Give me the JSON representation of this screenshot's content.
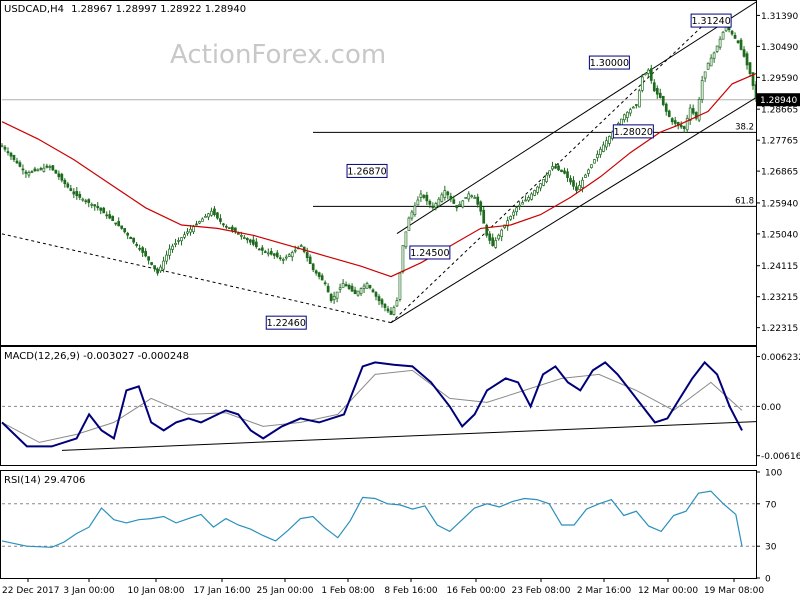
{
  "chart_data": [
    {
      "type": "candlestick",
      "header": {
        "symbol_tf": "USDCAD,H4",
        "ohlc": "1.28967 1.28997 1.28922 1.28940"
      },
      "watermark": "ActionForex.com",
      "y_axis_ticks": [
        "1.31390",
        "1.30490",
        "1.29590",
        "1.28665",
        "1.27765",
        "1.26865",
        "1.25940",
        "1.25040",
        "1.24115",
        "1.23215",
        "1.22315"
      ],
      "ylim": [
        1.2184,
        1.3178
      ],
      "last_price": "1.28940",
      "price_path": [
        [
          0,
          1.276
        ],
        [
          4,
          1.268
        ],
        [
          8,
          1.27
        ],
        [
          12,
          1.262
        ],
        [
          16,
          1.258
        ],
        [
          20,
          1.252
        ],
        [
          24,
          1.244
        ],
        [
          26,
          1.239
        ],
        [
          28,
          1.246
        ],
        [
          31,
          1.251
        ],
        [
          35,
          1.257
        ],
        [
          37,
          1.253
        ],
        [
          40,
          1.25
        ],
        [
          43,
          1.246
        ],
        [
          47,
          1.243
        ],
        [
          50,
          1.247
        ],
        [
          52,
          1.24
        ],
        [
          54,
          1.236
        ],
        [
          55,
          1.231
        ],
        [
          57,
          1.236
        ],
        [
          59,
          1.233
        ],
        [
          61,
          1.236
        ],
        [
          63,
          1.231
        ],
        [
          65,
          1.227
        ],
        [
          66,
          1.231
        ],
        [
          67,
          1.247
        ],
        [
          68,
          1.255
        ],
        [
          70,
          1.262
        ],
        [
          72,
          1.258
        ],
        [
          74,
          1.263
        ],
        [
          76,
          1.258
        ],
        [
          78,
          1.262
        ],
        [
          79,
          1.261
        ],
        [
          80,
          1.257
        ],
        [
          81,
          1.25
        ],
        [
          82,
          1.247
        ],
        [
          84,
          1.253
        ],
        [
          86,
          1.258
        ],
        [
          88,
          1.261
        ],
        [
          90,
          1.265
        ],
        [
          92,
          1.27
        ],
        [
          94,
          1.268
        ],
        [
          96,
          1.263
        ],
        [
          98,
          1.269
        ],
        [
          100,
          1.275
        ],
        [
          102,
          1.28
        ],
        [
          104,
          1.285
        ],
        [
          106,
          1.288
        ],
        [
          107,
          1.296
        ],
        [
          108,
          1.298
        ],
        [
          109,
          1.292
        ],
        [
          110,
          1.29
        ],
        [
          111,
          1.286
        ],
        [
          112,
          1.283
        ],
        [
          114,
          1.281
        ],
        [
          115,
          1.287
        ],
        [
          116,
          1.284
        ],
        [
          117,
          1.295
        ],
        [
          118,
          1.3
        ],
        [
          119,
          1.303
        ],
        [
          120,
          1.307
        ],
        [
          121,
          1.311
        ],
        [
          123,
          1.306
        ],
        [
          124,
          1.302
        ],
        [
          125,
          1.297
        ],
        [
          126,
          1.29
        ]
      ],
      "ma_path": [
        [
          0,
          1.283
        ],
        [
          6,
          1.278
        ],
        [
          12,
          1.272
        ],
        [
          18,
          1.265
        ],
        [
          24,
          1.258
        ],
        [
          30,
          1.253
        ],
        [
          36,
          1.252
        ],
        [
          42,
          1.25
        ],
        [
          48,
          1.247
        ],
        [
          54,
          1.244
        ],
        [
          60,
          1.241
        ],
        [
          65,
          1.238
        ],
        [
          70,
          1.242
        ],
        [
          75,
          1.247
        ],
        [
          80,
          1.252
        ],
        [
          85,
          1.253
        ],
        [
          90,
          1.256
        ],
        [
          95,
          1.261
        ],
        [
          100,
          1.267
        ],
        [
          105,
          1.274
        ],
        [
          110,
          1.28
        ],
        [
          113,
          1.282
        ],
        [
          118,
          1.286
        ],
        [
          122,
          1.294
        ],
        [
          126,
          1.297
        ]
      ],
      "labels": [
        {
          "text": "1.31240",
          "x": 118.5,
          "y": 1.3124
        },
        {
          "text": "1.30000",
          "x": 101.5,
          "y": 1.3002
        },
        {
          "text": "1.28020",
          "x": 105.5,
          "y": 1.2802
        },
        {
          "text": "1.26870",
          "x": 61,
          "y": 1.2687
        },
        {
          "text": "1.24500",
          "x": 71.5,
          "y": 1.245
        },
        {
          "text": "1.22460",
          "x": 47.5,
          "y": 1.2246
        }
      ],
      "fib_levels": [
        {
          "label": "38.2",
          "value": 1.2799
        },
        {
          "label": "61.8",
          "value": 1.2584
        }
      ]
    },
    {
      "type": "line",
      "header": "MACD(12,26,9) -0.003027 -0.000248",
      "y_axis_ticks": [
        "0.006232",
        "0.00",
        "-0.006163"
      ],
      "ylim": [
        -0.0072,
        0.0073
      ],
      "macd_path": [
        [
          0,
          -0.002
        ],
        [
          4,
          -0.005
        ],
        [
          8,
          -0.005
        ],
        [
          12,
          -0.004
        ],
        [
          14,
          -0.001
        ],
        [
          16,
          -0.003
        ],
        [
          18,
          -0.004
        ],
        [
          20,
          0.002
        ],
        [
          22,
          0.0025
        ],
        [
          24,
          -0.002
        ],
        [
          26,
          -0.003
        ],
        [
          28,
          -0.002
        ],
        [
          30,
          -0.0015
        ],
        [
          32,
          -0.002
        ],
        [
          36,
          -0.0005
        ],
        [
          38,
          -0.001
        ],
        [
          40,
          -0.003
        ],
        [
          42,
          -0.004
        ],
        [
          45,
          -0.0025
        ],
        [
          48,
          -0.0015
        ],
        [
          51,
          -0.002
        ],
        [
          55,
          -0.001
        ],
        [
          58,
          0.005
        ],
        [
          60,
          0.0055
        ],
        [
          63,
          0.0052
        ],
        [
          66,
          0.005
        ],
        [
          69,
          0.003
        ],
        [
          72,
          0.0
        ],
        [
          74,
          -0.0025
        ],
        [
          76,
          -0.001
        ],
        [
          78,
          0.002
        ],
        [
          81,
          0.0035
        ],
        [
          83,
          0.003
        ],
        [
          85,
          0.0
        ],
        [
          87,
          0.004
        ],
        [
          89,
          0.005
        ],
        [
          91,
          0.003
        ],
        [
          93,
          0.002
        ],
        [
          95,
          0.0045
        ],
        [
          97,
          0.0055
        ],
        [
          99,
          0.004
        ],
        [
          101,
          0.002
        ],
        [
          103,
          0.0
        ],
        [
          105,
          -0.002
        ],
        [
          107,
          -0.0015
        ],
        [
          109,
          0.001
        ],
        [
          111,
          0.0035
        ],
        [
          113,
          0.0055
        ],
        [
          115,
          0.004
        ],
        [
          117,
          0.0
        ],
        [
          119,
          -0.003
        ]
      ],
      "signal_path": [
        [
          0,
          -0.002
        ],
        [
          6,
          -0.0045
        ],
        [
          12,
          -0.0035
        ],
        [
          18,
          -0.002
        ],
        [
          24,
          0.001
        ],
        [
          30,
          -0.001
        ],
        [
          36,
          -0.0008
        ],
        [
          42,
          -0.0025
        ],
        [
          48,
          -0.002
        ],
        [
          54,
          -0.001
        ],
        [
          60,
          0.004
        ],
        [
          66,
          0.0045
        ],
        [
          72,
          0.001
        ],
        [
          78,
          0.0005
        ],
        [
          84,
          0.002
        ],
        [
          90,
          0.0035
        ],
        [
          96,
          0.004
        ],
        [
          102,
          0.002
        ],
        [
          108,
          -0.0005
        ],
        [
          114,
          0.003
        ],
        [
          119,
          -0.0005
        ]
      ],
      "trendline": [
        [
          0,
          -0.0055
        ],
        [
          119,
          -0.0019
        ]
      ]
    },
    {
      "type": "line",
      "header": "RSI(14) 29.4706",
      "y_axis_ticks": [
        "100",
        "70",
        "30",
        "0"
      ],
      "ylim": [
        0,
        100
      ],
      "rsi_path": [
        [
          0,
          35
        ],
        [
          4,
          30
        ],
        [
          8,
          29
        ],
        [
          10,
          34
        ],
        [
          12,
          42
        ],
        [
          14,
          48
        ],
        [
          16,
          66
        ],
        [
          18,
          55
        ],
        [
          20,
          52
        ],
        [
          22,
          55
        ],
        [
          24,
          56
        ],
        [
          26,
          58
        ],
        [
          28,
          52
        ],
        [
          30,
          56
        ],
        [
          32,
          60
        ],
        [
          34,
          48
        ],
        [
          36,
          56
        ],
        [
          38,
          50
        ],
        [
          40,
          46
        ],
        [
          42,
          40
        ],
        [
          44,
          35
        ],
        [
          46,
          45
        ],
        [
          48,
          56
        ],
        [
          50,
          58
        ],
        [
          52,
          47
        ],
        [
          54,
          38
        ],
        [
          56,
          54
        ],
        [
          58,
          76
        ],
        [
          60,
          75
        ],
        [
          62,
          70
        ],
        [
          64,
          69
        ],
        [
          66,
          65
        ],
        [
          68,
          68
        ],
        [
          70,
          50
        ],
        [
          72,
          44
        ],
        [
          74,
          55
        ],
        [
          76,
          66
        ],
        [
          78,
          70
        ],
        [
          80,
          67
        ],
        [
          82,
          72
        ],
        [
          84,
          75
        ],
        [
          86,
          74
        ],
        [
          88,
          70
        ],
        [
          90,
          50
        ],
        [
          92,
          50
        ],
        [
          94,
          65
        ],
        [
          96,
          70
        ],
        [
          98,
          74
        ],
        [
          100,
          59
        ],
        [
          102,
          63
        ],
        [
          104,
          49
        ],
        [
          106,
          44
        ],
        [
          108,
          59
        ],
        [
          110,
          63
        ],
        [
          112,
          80
        ],
        [
          114,
          82
        ],
        [
          116,
          70
        ],
        [
          118,
          60
        ],
        [
          119,
          30
        ]
      ],
      "levels": [
        70,
        30
      ]
    }
  ],
  "x_axis_labels": [
    "22 Dec 2017",
    "3 Jan 00:00",
    "10 Jan 08:00",
    "17 Jan 16:00",
    "25 Jan 00:00",
    "1 Feb 08:00",
    "8 Feb 16:00",
    "16 Feb 00:00",
    "23 Feb 08:00",
    "2 Mar 16:00",
    "12 Mar 00:00",
    "19 Mar 08:00"
  ],
  "colors": {
    "price": "#000000",
    "ma": "#cc0000",
    "macd": "#00007a",
    "signal": "#8a8a8a",
    "rsi": "#2a8fbd",
    "label_fill": "#ffffff",
    "label_border": "#000080"
  }
}
